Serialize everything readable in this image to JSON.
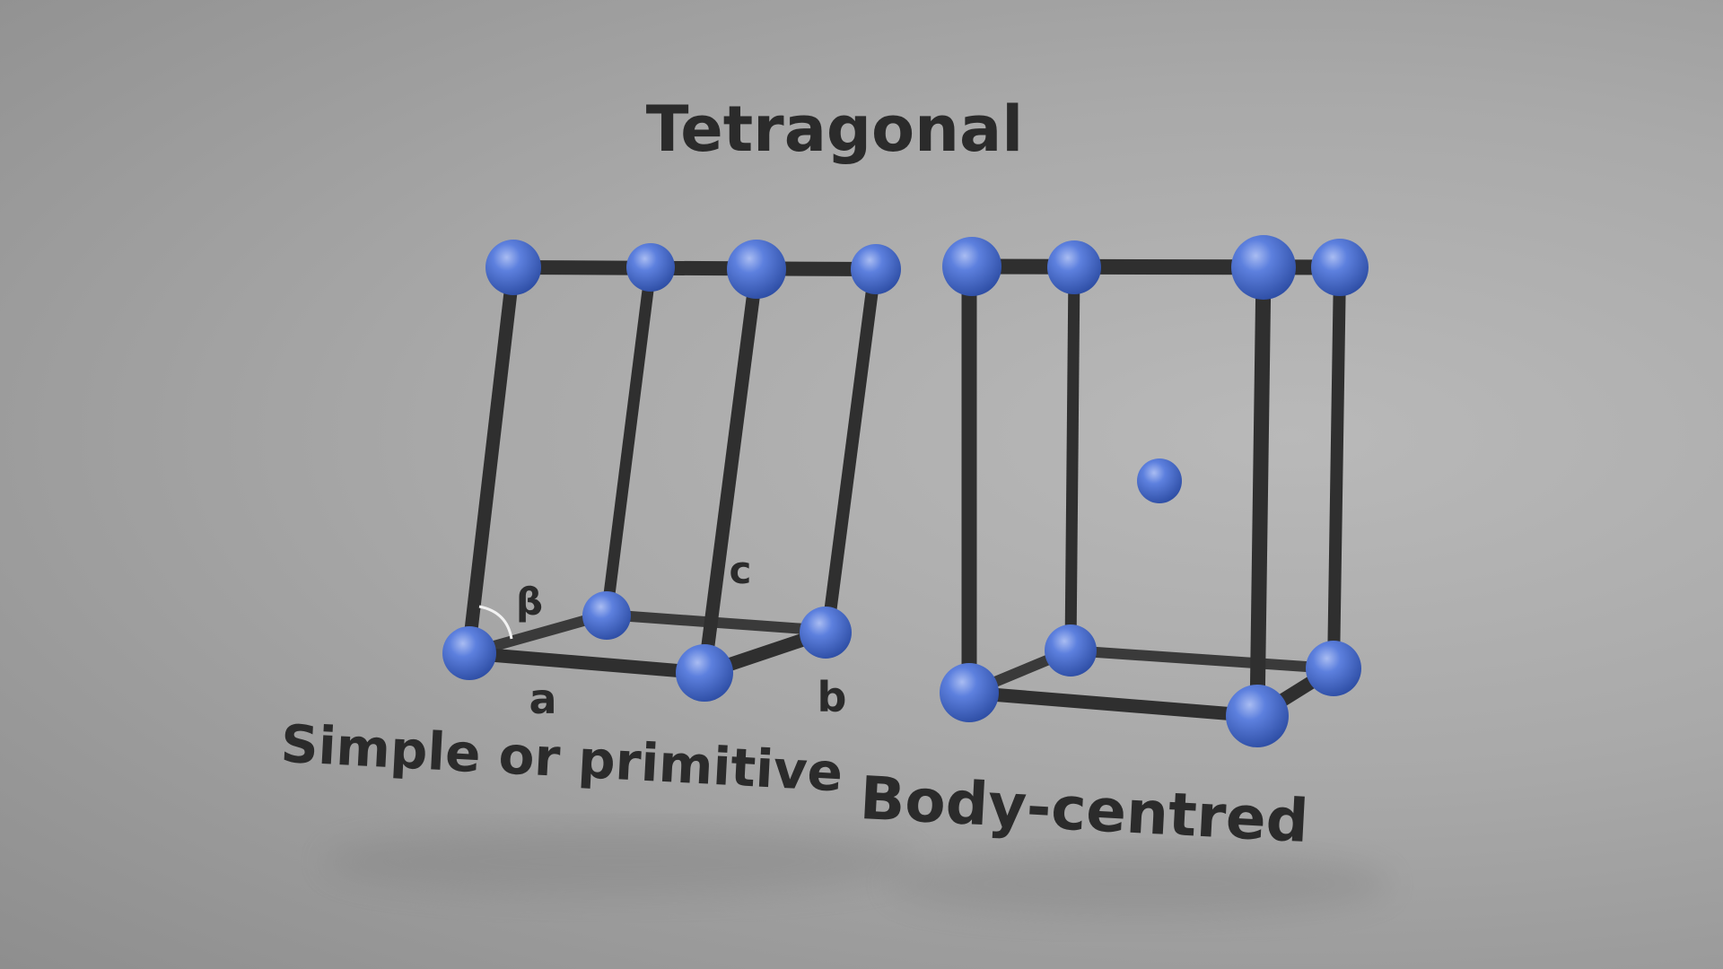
{
  "title": "Tetragonal",
  "lattices": [
    {
      "caption": "Simple or primitive",
      "axis_labels": {
        "a": "a",
        "b": "b",
        "c": "c",
        "angle": "β"
      },
      "atoms": 8
    },
    {
      "caption": "Body-centred",
      "atoms": 9
    }
  ],
  "colors": {
    "atom": "#4f74d6",
    "rod": "#2f2f2f",
    "text": "#2b2b2b"
  }
}
